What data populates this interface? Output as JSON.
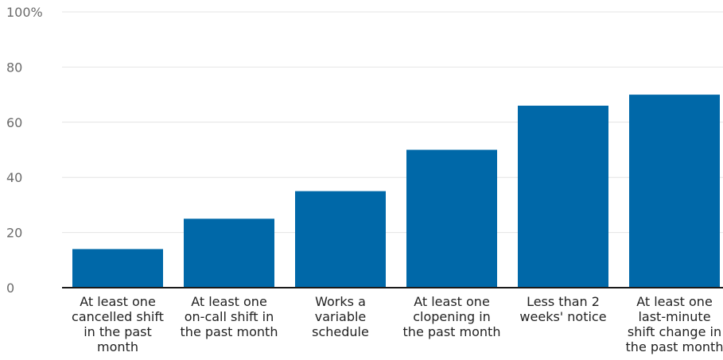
{
  "chart_data": {
    "type": "bar",
    "categories": [
      [
        "At least one",
        "cancelled shift",
        "in the past",
        "month"
      ],
      [
        "At least one",
        "on-call shift in",
        "the past month"
      ],
      [
        "Works a",
        "variable",
        "schedule"
      ],
      [
        "At least one",
        "clopening in",
        "the past month"
      ],
      [
        "Less than 2",
        "weeks' notice"
      ],
      [
        "At least one",
        "last-minute",
        "shift change in",
        "the past month"
      ]
    ],
    "values": [
      14,
      25,
      35,
      50,
      66,
      70
    ],
    "ylim": [
      0,
      100
    ],
    "yticks": [
      0,
      20,
      40,
      60,
      80,
      100
    ],
    "ytick_labels": [
      "0",
      "20",
      "40",
      "60",
      "80",
      "100%"
    ],
    "bar_color": "#0068a8",
    "grid": true
  }
}
